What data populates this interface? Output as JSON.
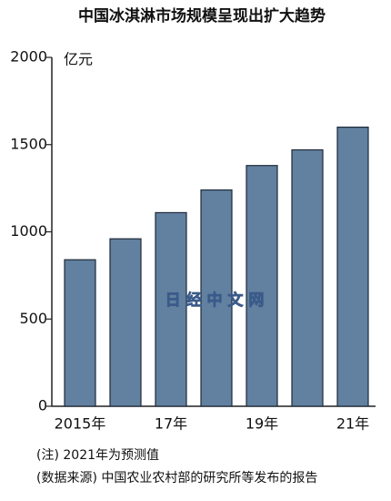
{
  "chart_data": {
    "type": "bar",
    "title": "中国冰淇淋市场规模呈现出扩大趋势",
    "y_label": "亿元",
    "categories": [
      "2015年",
      null,
      "17年",
      null,
      "19年",
      null,
      "21年"
    ],
    "values": [
      840,
      960,
      1110,
      1240,
      1380,
      1470,
      1600
    ],
    "color": "#62809f",
    "ylim": [
      0,
      2000
    ],
    "yticks": [
      0,
      500,
      1000,
      1500,
      2000
    ],
    "grid": false,
    "watermark": "日 经 中 文 网",
    "notes": [
      "(注) 2021年为预测值",
      "(数据来源) 中国农业农村部的研究所等发布的报告"
    ]
  }
}
